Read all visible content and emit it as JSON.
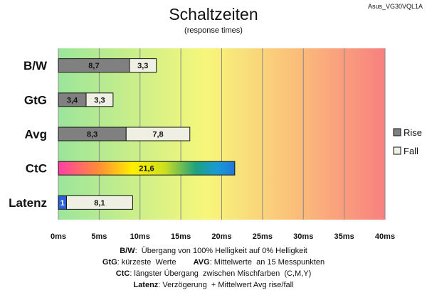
{
  "model_label": "Asus_VG30VQL1A",
  "chart_data": {
    "type": "bar",
    "orientation": "horizontal",
    "stacked": true,
    "title": "Schaltzeiten",
    "subtitle": "(response times)",
    "categories": [
      "B/W",
      "GtG",
      "Avg",
      "CtC",
      "Latenz"
    ],
    "series": [
      {
        "name": "Rise",
        "values": [
          8.7,
          3.4,
          8.3,
          null,
          1
        ],
        "value_labels": [
          "8,7",
          "3,4",
          "8,3",
          "",
          "1"
        ]
      },
      {
        "name": "Fall",
        "values": [
          3.3,
          3.3,
          7.8,
          null,
          8.1
        ],
        "value_labels": [
          "3,3",
          "3,3",
          "7,8",
          "",
          "8,1"
        ]
      }
    ],
    "single_bar": {
      "category": "CtC",
      "value": 21.6,
      "value_label": "21,6"
    },
    "xlim": [
      0,
      40
    ],
    "x_ticks": [
      0,
      5,
      10,
      15,
      20,
      25,
      30,
      35,
      40
    ],
    "x_tick_labels": [
      "0ms",
      "5ms",
      "10ms",
      "15ms",
      "20ms",
      "25ms",
      "30ms",
      "35ms",
      "40ms"
    ],
    "grid": true,
    "legend_position": "right",
    "colors": {
      "rise": "#808080",
      "fall": "#efefe4",
      "latenz_rise": "#2d5fd8",
      "bg_gradient": [
        "#9be59b",
        "#f7f77a",
        "#fbc07a",
        "#f88080"
      ],
      "ctc_gradient": [
        "#ff3fa6",
        "#ff8a3a",
        "#ffee00",
        "#cfe020",
        "#1ea07e",
        "#1a9ad6",
        "#1f77d8"
      ]
    }
  },
  "notes": [
    {
      "parts": [
        {
          "text": "B/W",
          "bold": true
        },
        {
          "text": ":  Übergang von 100% Helligkeit auf 0% Helligkeit",
          "bold": false
        }
      ]
    },
    {
      "parts": [
        {
          "text": "GtG",
          "bold": true
        },
        {
          "text": ": kürzeste  Werte",
          "bold": false
        },
        {
          "text": "        AVG",
          "bold": true
        },
        {
          "text": ": Mittelwerte  an 15 Messpunkten",
          "bold": false
        }
      ]
    },
    {
      "parts": [
        {
          "text": "CtC",
          "bold": true
        },
        {
          "text": ": längster Übergang  zwischen Mischfarben  (C,M,Y)",
          "bold": false
        }
      ]
    },
    {
      "parts": [
        {
          "text": "Latenz",
          "bold": true
        },
        {
          "text": ": Verzögerung  + Mittelwert Avg rise/fall",
          "bold": false
        }
      ]
    }
  ]
}
